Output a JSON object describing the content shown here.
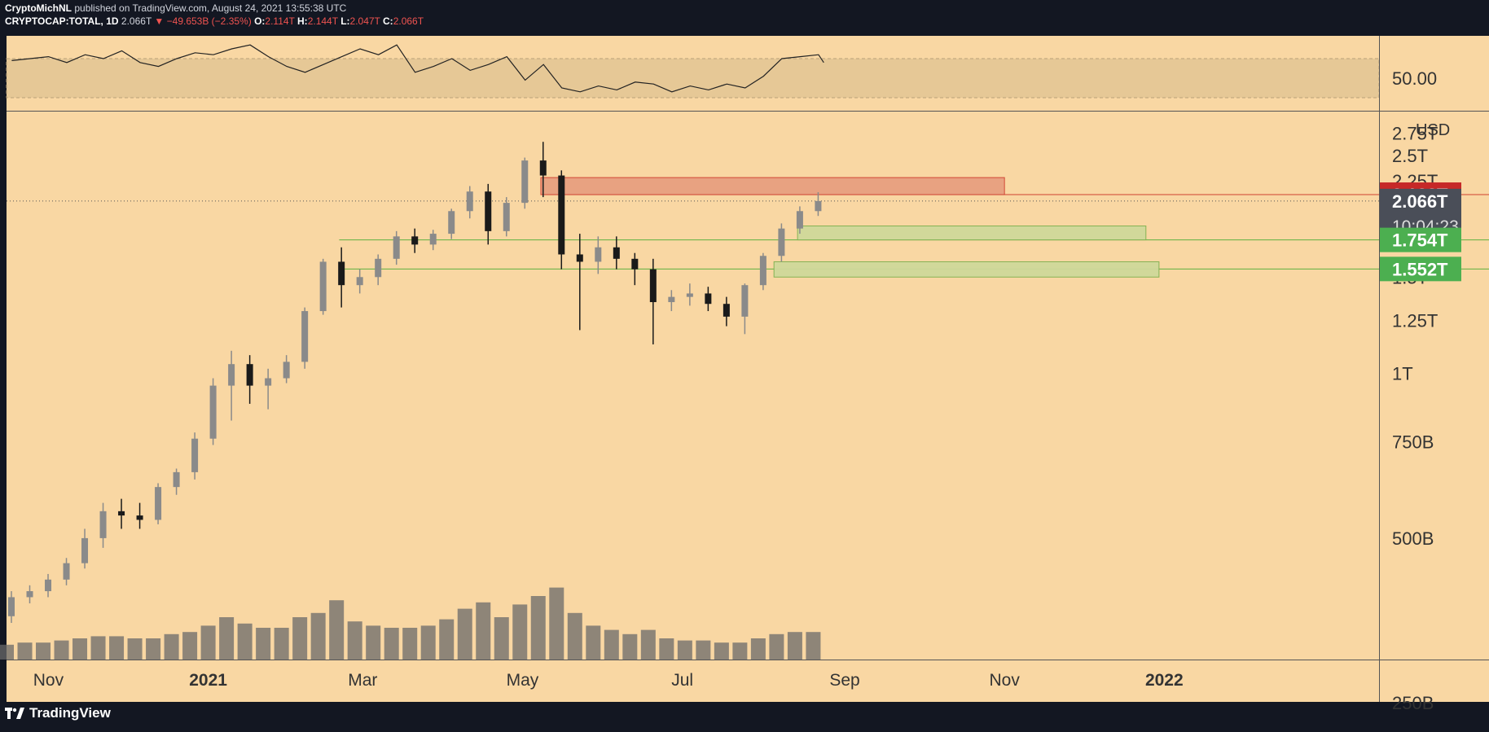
{
  "header": {
    "author": "CryptoMichNL",
    "published_text": "published on TradingView.com, August 24, 2021 13:55:38 UTC",
    "symbol": "CRYPTOCAP:TOTAL, 1D",
    "last": "2.066T",
    "change": "▼ −49.653B (−2.35%)",
    "o_label": "O:",
    "o_value": "2.114T",
    "h_label": "H:",
    "h_value": "2.144T",
    "l_label": "L:",
    "l_value": "2.047T",
    "c_label": "C:",
    "c_value": "2.066T"
  },
  "brand": {
    "name": "TradingView",
    "logo_icon": "tradingview-logo-icon"
  },
  "colors": {
    "background": "#f9d7a3",
    "frame": "#131722",
    "resistance_zone": "#e8a080",
    "support_zone": "#cfd99a",
    "up_candle": "#8a8a8a",
    "down_candle": "#1a1a1a",
    "price_red": "#c62828",
    "price_green": "#4caf50"
  },
  "chart_data": [
    {
      "type": "line",
      "panel": "oscillator",
      "band": [
        30,
        70
      ],
      "ylim": [
        20,
        90
      ],
      "y_tick_labels": [
        "50.00"
      ],
      "x": [
        "2020-10-18",
        "2020-10-25",
        "2020-11-01",
        "2020-11-08",
        "2020-11-15",
        "2020-11-22",
        "2020-11-29",
        "2020-12-06",
        "2020-12-13",
        "2020-12-20",
        "2020-12-27",
        "2021-01-03",
        "2021-01-10",
        "2021-01-17",
        "2021-01-24",
        "2021-01-31",
        "2021-02-07",
        "2021-02-14",
        "2021-02-21",
        "2021-02-28",
        "2021-03-07",
        "2021-03-14",
        "2021-03-21",
        "2021-03-28",
        "2021-04-04",
        "2021-04-11",
        "2021-04-18",
        "2021-04-25",
        "2021-05-02",
        "2021-05-09",
        "2021-05-16",
        "2021-05-23",
        "2021-05-30",
        "2021-06-06",
        "2021-06-13",
        "2021-06-20",
        "2021-06-27",
        "2021-07-04",
        "2021-07-11",
        "2021-07-18",
        "2021-07-25",
        "2021-08-01",
        "2021-08-08",
        "2021-08-15",
        "2021-08-22",
        "2021-08-24"
      ],
      "series": [
        {
          "values": [
            68,
            70,
            72,
            66,
            74,
            70,
            78,
            66,
            62,
            70,
            76,
            74,
            80,
            84,
            72,
            62,
            56,
            64,
            72,
            80,
            74,
            84,
            56,
            62,
            70,
            58,
            64,
            72,
            48,
            64,
            40,
            36,
            42,
            38,
            46,
            44,
            36,
            42,
            38,
            44,
            40,
            52,
            70,
            72,
            74,
            66
          ]
        }
      ]
    },
    {
      "type": "candlestick",
      "panel": "price",
      "yscale": "log",
      "ylim": [
        0.3,
        3.0
      ],
      "y_unit": "USD",
      "y_tick_labels": [
        "2.75T",
        "2.5T",
        "2.25T",
        "1.75T",
        "1.5T",
        "1.25T",
        "1T",
        "750B",
        "500B",
        "250B"
      ],
      "y_tick_values": [
        2.75,
        2.5,
        2.25,
        1.75,
        1.5,
        1.25,
        1.0,
        0.75,
        0.5,
        0.25
      ],
      "x_tick_labels": [
        "Nov",
        "2021",
        "Mar",
        "May",
        "Jul",
        "Sep",
        "Nov",
        "2022"
      ],
      "x_tick_dates": [
        "2020-11-01",
        "2021-01-01",
        "2021-03-01",
        "2021-05-01",
        "2021-07-01",
        "2021-09-01",
        "2021-11-01",
        "2022-01-01"
      ],
      "x_range": [
        "2020-10-16",
        "2022-03-24"
      ],
      "price_labels": [
        {
          "text": "2.122T",
          "value": 2.122,
          "kind": "resistance"
        },
        {
          "text": "2.066T",
          "value": 2.066,
          "kind": "last"
        },
        {
          "text": "10:04:23",
          "kind": "countdown"
        },
        {
          "text": "1.754T",
          "value": 1.754,
          "kind": "support"
        },
        {
          "text": "1.552T",
          "value": 1.552,
          "kind": "support"
        }
      ],
      "zones": [
        {
          "kind": "resistance",
          "from": "2021-05-08",
          "to": "2021-11-01",
          "low": 2.122,
          "high": 2.28
        },
        {
          "kind": "support",
          "from": "2021-08-14",
          "to": "2021-12-25",
          "low": 1.754,
          "high": 1.86
        },
        {
          "kind": "support",
          "from": "2021-08-05",
          "to": "2021-12-30",
          "low": 1.5,
          "high": 1.6
        }
      ],
      "levels": [
        {
          "value": 2.122,
          "from": "2021-05-08"
        },
        {
          "value": 1.754,
          "from": "2021-02-20"
        },
        {
          "value": 1.552,
          "from": "2021-02-20"
        }
      ],
      "last_price": 2.066,
      "weekly_ohlc": {
        "dates": [
          "2020-10-16",
          "2020-10-23",
          "2020-10-30",
          "2020-11-06",
          "2020-11-13",
          "2020-11-20",
          "2020-11-27",
          "2020-12-04",
          "2020-12-11",
          "2020-12-18",
          "2020-12-25",
          "2021-01-01",
          "2021-01-08",
          "2021-01-15",
          "2021-01-22",
          "2021-01-29",
          "2021-02-05",
          "2021-02-12",
          "2021-02-19",
          "2021-02-26",
          "2021-03-05",
          "2021-03-12",
          "2021-03-19",
          "2021-03-26",
          "2021-04-02",
          "2021-04-09",
          "2021-04-16",
          "2021-04-23",
          "2021-04-30",
          "2021-05-07",
          "2021-05-14",
          "2021-05-21",
          "2021-05-28",
          "2021-06-04",
          "2021-06-11",
          "2021-06-18",
          "2021-06-25",
          "2021-07-02",
          "2021-07-09",
          "2021-07-16",
          "2021-07-23",
          "2021-07-30",
          "2021-08-06",
          "2021-08-13",
          "2021-08-20"
        ],
        "open": [
          0.36,
          0.39,
          0.4,
          0.42,
          0.45,
          0.5,
          0.56,
          0.55,
          0.54,
          0.62,
          0.66,
          0.76,
          0.95,
          1.04,
          0.95,
          0.98,
          1.05,
          1.3,
          1.6,
          1.45,
          1.5,
          1.62,
          1.78,
          1.72,
          1.8,
          1.98,
          2.15,
          1.82,
          2.05,
          2.45,
          2.3,
          1.65,
          1.6,
          1.7,
          1.62,
          1.55,
          1.35,
          1.38,
          1.4,
          1.34,
          1.27,
          1.45,
          1.64,
          1.84,
          1.98
        ],
        "high": [
          0.4,
          0.41,
          0.43,
          0.46,
          0.52,
          0.58,
          0.59,
          0.58,
          0.63,
          0.67,
          0.78,
          0.98,
          1.1,
          1.08,
          1.02,
          1.08,
          1.32,
          1.62,
          1.7,
          1.55,
          1.65,
          1.82,
          1.84,
          1.83,
          2.0,
          2.2,
          2.22,
          2.1,
          2.48,
          2.65,
          2.35,
          1.8,
          1.78,
          1.78,
          1.66,
          1.62,
          1.42,
          1.46,
          1.44,
          1.38,
          1.46,
          1.66,
          1.88,
          2.02,
          2.144
        ],
        "low": [
          0.35,
          0.38,
          0.39,
          0.41,
          0.44,
          0.48,
          0.52,
          0.52,
          0.53,
          0.6,
          0.64,
          0.74,
          0.82,
          0.88,
          0.86,
          0.96,
          1.02,
          1.28,
          1.32,
          1.4,
          1.45,
          1.58,
          1.66,
          1.68,
          1.76,
          1.92,
          1.72,
          1.78,
          2.0,
          2.1,
          1.55,
          1.2,
          1.52,
          1.55,
          1.45,
          1.13,
          1.3,
          1.33,
          1.3,
          1.22,
          1.18,
          1.42,
          1.6,
          1.8,
          1.94
        ],
        "close": [
          0.39,
          0.4,
          0.42,
          0.45,
          0.5,
          0.56,
          0.55,
          0.54,
          0.62,
          0.66,
          0.76,
          0.95,
          1.04,
          0.95,
          0.98,
          1.05,
          1.3,
          1.6,
          1.45,
          1.5,
          1.62,
          1.78,
          1.72,
          1.8,
          1.98,
          2.15,
          1.82,
          2.05,
          2.45,
          2.3,
          1.65,
          1.6,
          1.7,
          1.62,
          1.55,
          1.35,
          1.38,
          1.4,
          1.34,
          1.27,
          1.45,
          1.64,
          1.84,
          1.98,
          2.066
        ]
      },
      "volume_weekly": [
        0.07,
        0.08,
        0.08,
        0.09,
        0.1,
        0.11,
        0.11,
        0.1,
        0.1,
        0.12,
        0.13,
        0.16,
        0.2,
        0.17,
        0.15,
        0.15,
        0.2,
        0.22,
        0.28,
        0.18,
        0.16,
        0.15,
        0.15,
        0.16,
        0.19,
        0.24,
        0.27,
        0.2,
        0.26,
        0.3,
        0.34,
        0.22,
        0.16,
        0.14,
        0.12,
        0.14,
        0.1,
        0.09,
        0.09,
        0.08,
        0.08,
        0.1,
        0.12,
        0.13,
        0.13
      ]
    }
  ]
}
